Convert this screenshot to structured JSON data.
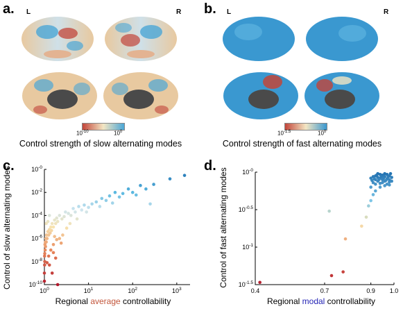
{
  "panels": {
    "a": {
      "label": "a.",
      "left": "L",
      "right": "R",
      "colorbar": {
        "low": "10",
        "low_exp": "-10",
        "high": "10",
        "high_exp": "0"
      },
      "caption": "Control strength of slow alternating modes"
    },
    "b": {
      "label": "b.",
      "left": "L",
      "right": "R",
      "colorbar": {
        "low": "10",
        "low_exp": "-1.5",
        "high": "10",
        "high_exp": "0"
      },
      "caption": "Control strength of fast alternating modes"
    },
    "c": {
      "label": "c."
    },
    "d": {
      "label": "d."
    }
  },
  "colors": {
    "brain_base": "#e8c9a0",
    "brain_blue": "#4ba6d6",
    "brain_red": "#c2453a",
    "subcortex": "#4a4a4a",
    "average_word": "#c2553a",
    "modal_word": "#2424b5"
  },
  "chart_data": [
    {
      "type": "scatter",
      "panel": "c",
      "xlabel_parts": [
        "Regional ",
        "average",
        " controllability"
      ],
      "ylabel": "Control of slow alternating modes",
      "x_scale": "log",
      "y_scale": "log",
      "xlim": [
        1,
        2000
      ],
      "ylim": [
        1e-10,
        1
      ],
      "x_ticks": [
        {
          "base": "10",
          "exp": "0"
        },
        {
          "base": "10",
          "exp": "1"
        },
        {
          "base": "10",
          "exp": "2"
        },
        {
          "base": "10",
          "exp": "3"
        }
      ],
      "y_ticks": [
        {
          "base": "10",
          "exp": "-0"
        },
        {
          "base": "10",
          "exp": "-2"
        },
        {
          "base": "10",
          "exp": "-4"
        },
        {
          "base": "10",
          "exp": "-6"
        },
        {
          "base": "10",
          "exp": "-8"
        },
        {
          "base": "10",
          "exp": "-10"
        }
      ],
      "x_tick_values": [
        1,
        10,
        100,
        1000
      ],
      "y_tick_values": [
        1,
        0.01,
        0.0001,
        1e-06,
        1e-08,
        1e-10
      ],
      "colormap": "slow",
      "points": [
        [
          1500,
          0.3
        ],
        [
          700,
          0.15
        ],
        [
          300,
          0.05
        ],
        [
          200,
          0.02
        ],
        [
          150,
          0.04
        ],
        [
          100,
          0.01
        ],
        [
          80,
          0.02
        ],
        [
          60,
          0.008
        ],
        [
          50,
          0.004
        ],
        [
          40,
          0.01
        ],
        [
          30,
          0.005
        ],
        [
          25,
          0.002
        ],
        [
          20,
          0.003
        ],
        [
          15,
          0.0015
        ],
        [
          12,
          0.001
        ],
        [
          10,
          0.0005
        ],
        [
          8,
          0.0008
        ],
        [
          7,
          0.0003
        ],
        [
          6,
          0.0006
        ],
        [
          5,
          0.0002
        ],
        [
          4.5,
          0.0004
        ],
        [
          4,
          0.0001
        ],
        [
          3.5,
          0.00015
        ],
        [
          3,
          0.0002
        ],
        [
          2.8,
          8e-05
        ],
        [
          2.5,
          5e-05
        ],
        [
          2.2,
          0.0001
        ],
        [
          2,
          3e-05
        ],
        [
          1.9,
          6e-05
        ],
        [
          1.8,
          2e-05
        ],
        [
          1.7,
          4e-05
        ],
        [
          1.6,
          1e-05
        ],
        [
          1.5,
          2e-05
        ],
        [
          1.45,
          5e-06
        ],
        [
          1.4,
          1e-05
        ],
        [
          1.35,
          3e-06
        ],
        [
          1.3,
          6e-06
        ],
        [
          1.25,
          2e-06
        ],
        [
          1.2,
          4e-06
        ],
        [
          1.15,
          1e-06
        ],
        [
          1.12,
          2e-06
        ],
        [
          1.1,
          5e-07
        ],
        [
          1.08,
          1e-06
        ],
        [
          1.06,
          2e-07
        ],
        [
          1.05,
          5e-07
        ],
        [
          1.04,
          1e-07
        ],
        [
          1.03,
          3e-07
        ],
        [
          1.02,
          5e-08
        ],
        [
          1.02,
          1e-08
        ],
        [
          1.01,
          3e-08
        ],
        [
          1.01,
          5e-09
        ],
        [
          1.0,
          1e-09
        ],
        [
          1.0,
          2e-10
        ],
        [
          1.3,
          5e-09
        ],
        [
          1.5,
          1e-09
        ],
        [
          2.0,
          1e-10
        ],
        [
          1.8,
          2e-08
        ],
        [
          1.4,
          1e-07
        ],
        [
          1.6,
          3e-07
        ],
        [
          2.2,
          1e-06
        ],
        [
          2.6,
          2e-06
        ],
        [
          3.2,
          8e-06
        ],
        [
          3.8,
          2e-05
        ],
        [
          5.5,
          5e-05
        ],
        [
          9,
          0.0002
        ],
        [
          18,
          0.0006
        ],
        [
          35,
          0.0012
        ],
        [
          120,
          0.006
        ],
        [
          250,
          0.001
        ],
        [
          1.2,
          3e-05
        ],
        [
          1.3,
          0.0001
        ],
        [
          1.1,
          2e-05
        ],
        [
          1.7,
          1.5e-06
        ],
        [
          2.4,
          4e-07
        ],
        [
          1.9,
          8e-07
        ],
        [
          1.15,
          8e-09
        ],
        [
          1.25,
          3e-08
        ],
        [
          1.6,
          6e-08
        ]
      ]
    },
    {
      "type": "scatter",
      "panel": "d",
      "xlabel_parts": [
        "Regional ",
        "modal",
        " controllability"
      ],
      "ylabel": "Control of fast alternating modes",
      "x_scale": "linear",
      "y_scale": "log",
      "xlim": [
        0.4,
        1.0
      ],
      "ylim": [
        -1.5,
        0
      ],
      "x_ticks": [
        {
          "base": "0.4",
          "exp": ""
        },
        {
          "base": "0.7",
          "exp": ""
        },
        {
          "base": "0.9",
          "exp": ""
        },
        {
          "base": "1.0",
          "exp": ""
        }
      ],
      "y_ticks": [
        {
          "base": "10",
          "exp": "-0"
        },
        {
          "base": "10",
          "exp": "-0.5"
        },
        {
          "base": "10",
          "exp": "-1"
        },
        {
          "base": "10",
          "exp": "-1.5"
        }
      ],
      "x_tick_values": [
        0.4,
        0.7,
        0.9,
        1.0
      ],
      "y_tick_values": [
        0,
        -0.5,
        -1,
        -1.5
      ],
      "colormap": "fast",
      "points": [
        [
          0.42,
          -1.47
        ],
        [
          0.73,
          -1.38
        ],
        [
          0.78,
          -1.33
        ],
        [
          0.79,
          -0.89
        ],
        [
          0.72,
          -0.52
        ],
        [
          0.86,
          -0.72
        ],
        [
          0.88,
          -0.6
        ],
        [
          0.89,
          -0.45
        ],
        [
          0.9,
          -0.38
        ],
        [
          0.9,
          -0.2
        ],
        [
          0.91,
          -0.14
        ],
        [
          0.92,
          -0.1
        ],
        [
          0.92,
          -0.05
        ],
        [
          0.93,
          -0.12
        ],
        [
          0.93,
          -0.02
        ],
        [
          0.94,
          -0.08
        ],
        [
          0.94,
          -0.15
        ],
        [
          0.95,
          -0.04
        ],
        [
          0.95,
          -0.1
        ],
        [
          0.96,
          -0.06
        ],
        [
          0.96,
          -0.12
        ],
        [
          0.97,
          -0.03
        ],
        [
          0.97,
          -0.09
        ],
        [
          0.98,
          -0.05
        ],
        [
          0.98,
          -0.13
        ],
        [
          0.99,
          -0.07
        ],
        [
          0.91,
          -0.06
        ],
        [
          0.92,
          -0.16
        ],
        [
          0.93,
          -0.07
        ],
        [
          0.94,
          -0.03
        ],
        [
          0.95,
          -0.14
        ],
        [
          0.96,
          -0.02
        ],
        [
          0.97,
          -0.16
        ],
        [
          0.98,
          -0.1
        ],
        [
          0.99,
          -0.12
        ],
        [
          0.915,
          -0.09
        ],
        [
          0.925,
          -0.04
        ],
        [
          0.935,
          -0.1
        ],
        [
          0.945,
          -0.06
        ],
        [
          0.955,
          -0.08
        ],
        [
          0.965,
          -0.11
        ],
        [
          0.975,
          -0.06
        ],
        [
          0.985,
          -0.02
        ],
        [
          0.905,
          -0.11
        ],
        [
          0.9,
          -0.08
        ],
        [
          0.92,
          -0.25
        ],
        [
          0.94,
          -0.2
        ],
        [
          0.96,
          -0.18
        ],
        [
          0.98,
          -0.17
        ],
        [
          0.91,
          -0.3
        ]
      ]
    }
  ]
}
